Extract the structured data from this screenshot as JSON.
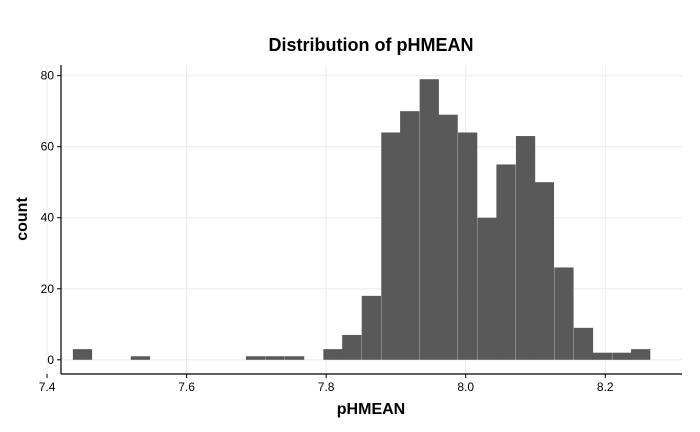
{
  "chart_data": {
    "type": "bar",
    "title": "Distribution of pHMEAN",
    "xlabel": "pHMEAN",
    "ylabel": "count",
    "xlim": [
      7.42,
      8.31
    ],
    "ylim": [
      -4,
      83
    ],
    "xticks": [
      7.4,
      7.6,
      7.8,
      8.0,
      8.2
    ],
    "xtick_labels": [
      "7.4",
      "7.6",
      "7.8",
      "8.0",
      "8.2"
    ],
    "yticks": [
      0,
      20,
      40,
      60,
      80
    ],
    "ytick_labels": [
      "0",
      "20",
      "40",
      "60",
      "80"
    ],
    "grid": true,
    "bar_color": "#595959",
    "bin_width": 0.0276,
    "bins": [
      {
        "x0": 7.437,
        "count": 3
      },
      {
        "x0": 7.465,
        "count": 0
      },
      {
        "x0": 7.492,
        "count": 0
      },
      {
        "x0": 7.52,
        "count": 1
      },
      {
        "x0": 7.547,
        "count": 0
      },
      {
        "x0": 7.575,
        "count": 0
      },
      {
        "x0": 7.603,
        "count": 0
      },
      {
        "x0": 7.63,
        "count": 0
      },
      {
        "x0": 7.658,
        "count": 0
      },
      {
        "x0": 7.685,
        "count": 1
      },
      {
        "x0": 7.713,
        "count": 1
      },
      {
        "x0": 7.741,
        "count": 1
      },
      {
        "x0": 7.768,
        "count": 0
      },
      {
        "x0": 7.796,
        "count": 3
      },
      {
        "x0": 7.823,
        "count": 7
      },
      {
        "x0": 7.851,
        "count": 18
      },
      {
        "x0": 7.879,
        "count": 64
      },
      {
        "x0": 7.906,
        "count": 70
      },
      {
        "x0": 7.934,
        "count": 79
      },
      {
        "x0": 7.961,
        "count": 69
      },
      {
        "x0": 7.989,
        "count": 64
      },
      {
        "x0": 8.017,
        "count": 40
      },
      {
        "x0": 8.044,
        "count": 55
      },
      {
        "x0": 8.072,
        "count": 63
      },
      {
        "x0": 8.099,
        "count": 50
      },
      {
        "x0": 8.127,
        "count": 26
      },
      {
        "x0": 8.155,
        "count": 9
      },
      {
        "x0": 8.182,
        "count": 2
      },
      {
        "x0": 8.21,
        "count": 2
      },
      {
        "x0": 8.237,
        "count": 3
      }
    ]
  }
}
